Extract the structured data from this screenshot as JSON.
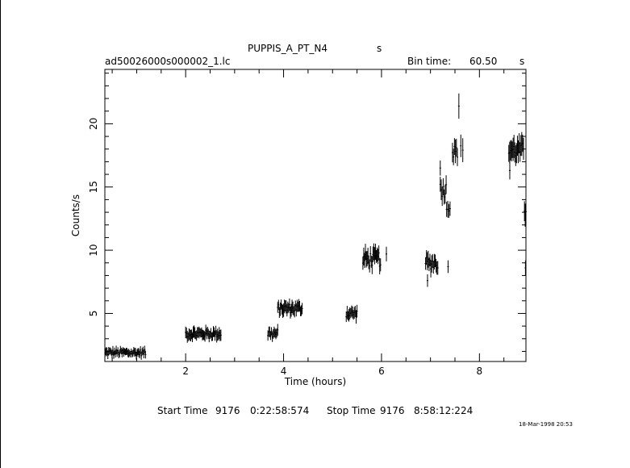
{
  "header": {
    "title": "PUPPIS_A_PT_N4",
    "title_suffix": "s",
    "file_name": "ad50026000s000002_1.lc",
    "bin_time_label": "Bin time:",
    "bin_time_value": "60.50",
    "bin_time_unit": "s"
  },
  "footer": {
    "start_label": "Start Time",
    "start_day": "9176",
    "start_time": "0:22:58:574",
    "stop_label": "Stop Time",
    "stop_day": "9176",
    "stop_time": "8:58:12:224",
    "timestamp": "18-Mar-1998 20:53"
  },
  "chart_data": {
    "type": "scatter",
    "title": "PUPPIS_A_PT_N4",
    "xlabel": "Time (hours)",
    "ylabel": "Counts/s",
    "xlim": [
      0.35,
      8.95
    ],
    "ylim": [
      1.2,
      24.3
    ],
    "xticks": [
      2,
      4,
      6,
      8
    ],
    "yticks": [
      5,
      10,
      15,
      20
    ],
    "grid": false,
    "segments": [
      {
        "x_start": 0.36,
        "x_end": 1.18,
        "mean": 1.9,
        "spread": 0.25,
        "err": 0.3,
        "n": 49
      },
      {
        "x_start": 2.0,
        "x_end": 2.72,
        "mean": 3.4,
        "spread": 0.3,
        "err": 0.4,
        "n": 43
      },
      {
        "x_start": 3.68,
        "x_end": 3.88,
        "mean": 3.4,
        "spread": 0.35,
        "err": 0.4,
        "n": 12
      },
      {
        "x_start": 3.88,
        "x_end": 4.38,
        "mean": 5.4,
        "spread": 0.35,
        "err": 0.45,
        "n": 30
      },
      {
        "x_start": 5.28,
        "x_end": 5.5,
        "mean": 5.0,
        "spread": 0.3,
        "err": 0.45,
        "n": 13
      },
      {
        "x_start": 5.62,
        "x_end": 5.98,
        "mean": 9.3,
        "spread": 0.6,
        "err": 0.6,
        "n": 22
      },
      {
        "x_start": 6.1,
        "x_end": 6.1,
        "mean": 9.7,
        "spread": 0.0,
        "err": 0.6,
        "n": 1
      },
      {
        "x_start": 6.9,
        "x_end": 7.15,
        "mean": 9.0,
        "spread": 0.5,
        "err": 0.6,
        "n": 15
      },
      {
        "x_start": 7.2,
        "x_end": 7.32,
        "mean": 14.8,
        "spread": 0.6,
        "err": 0.7,
        "n": 7
      },
      {
        "x_start": 7.33,
        "x_end": 7.4,
        "mean": 13.4,
        "spread": 0.3,
        "err": 0.6,
        "n": 4
      },
      {
        "x_start": 7.45,
        "x_end": 7.55,
        "mean": 17.8,
        "spread": 0.5,
        "err": 0.8,
        "n": 6
      },
      {
        "x_start": 7.62,
        "x_end": 7.66,
        "mean": 18.0,
        "spread": 0.3,
        "err": 0.8,
        "n": 2
      },
      {
        "x_start": 8.6,
        "x_end": 8.9,
        "mean": 17.9,
        "spread": 0.6,
        "err": 0.8,
        "n": 18
      },
      {
        "x_start": 8.92,
        "x_end": 8.95,
        "mean": 13.5,
        "spread": 1.0,
        "err": 0.8,
        "n": 3
      }
    ],
    "points": [
      {
        "x": 7.2,
        "y": 16.5,
        "err": 0.6
      },
      {
        "x": 7.36,
        "y": 8.7,
        "err": 0.5
      },
      {
        "x": 7.58,
        "y": 21.4,
        "err": 1.0
      },
      {
        "x": 6.94,
        "y": 7.6,
        "err": 0.5
      },
      {
        "x": 8.62,
        "y": 16.3,
        "err": 0.7
      },
      {
        "x": 8.94,
        "y": 8.6,
        "err": 0.6
      }
    ]
  }
}
